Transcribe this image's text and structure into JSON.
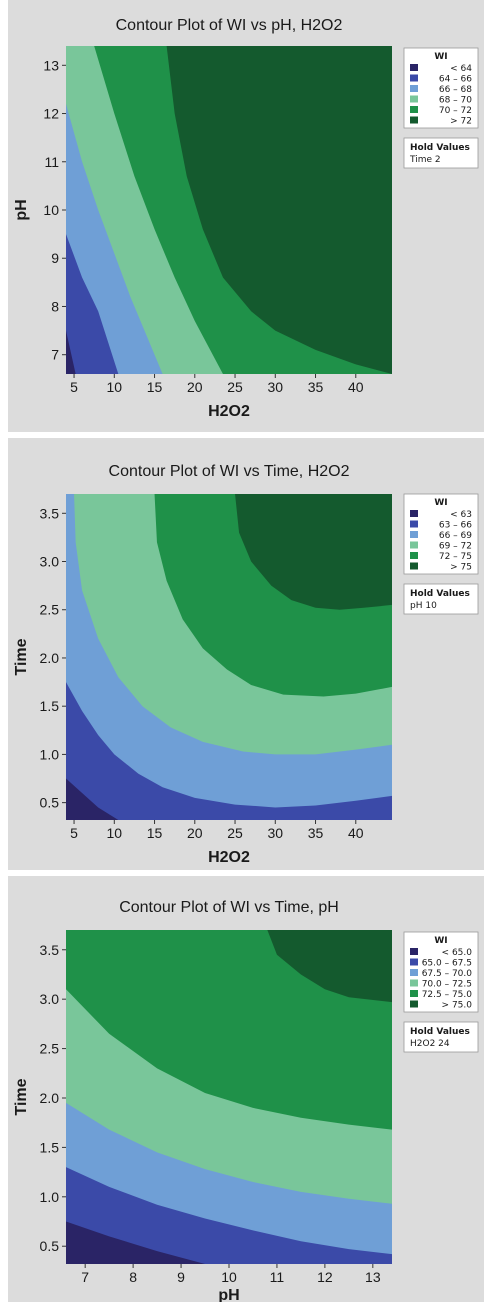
{
  "chart_data": [
    {
      "type": "contour",
      "title": "Contour Plot of WI vs pH, H2O2",
      "xlabel": "H2O2",
      "ylabel": "pH",
      "xlim": [
        4,
        44.5
      ],
      "ylim": [
        6.6,
        13.4
      ],
      "xticks": [
        "5",
        "10",
        "15",
        "20",
        "25",
        "30",
        "35",
        "40"
      ],
      "yticks": [
        "7",
        "8",
        "9",
        "10",
        "11",
        "12",
        "13"
      ],
      "legend": {
        "title": "WI",
        "entries": [
          {
            "op": "<",
            "lo": "",
            "hi": "64",
            "color": "#2a2466"
          },
          {
            "op": "–",
            "lo": "64",
            "hi": "66",
            "color": "#3b4aa8"
          },
          {
            "op": "–",
            "lo": "66",
            "hi": "68",
            "color": "#6f9fd6"
          },
          {
            "op": "–",
            "lo": "68",
            "hi": "70",
            "color": "#79c69a"
          },
          {
            "op": "–",
            "lo": "70",
            "hi": "72",
            "color": "#1f9149"
          },
          {
            "op": ">",
            "lo": "",
            "hi": "72",
            "color": "#145a2e"
          }
        ]
      },
      "hold": {
        "header": "Hold Values",
        "lines": [
          "Time  2"
        ]
      },
      "contours": [
        {
          "level": 64,
          "points": [
            [
              4.0,
              7.5
            ],
            [
              5.2,
              6.6
            ]
          ]
        },
        {
          "level": 66,
          "points": [
            [
              4.0,
              9.5
            ],
            [
              6.0,
              8.6
            ],
            [
              8.0,
              7.9
            ],
            [
              10.5,
              6.6
            ]
          ]
        },
        {
          "level": 68,
          "points": [
            [
              4.0,
              12.2
            ],
            [
              6.0,
              11.0
            ],
            [
              8.0,
              10.0
            ],
            [
              10.0,
              9.1
            ],
            [
              12.0,
              8.2
            ],
            [
              14.0,
              7.4
            ],
            [
              16.0,
              6.6
            ]
          ]
        },
        {
          "level": 70,
          "points": [
            [
              7.5,
              13.4
            ],
            [
              10.0,
              12.0
            ],
            [
              12.5,
              10.7
            ],
            [
              15.0,
              9.6
            ],
            [
              17.5,
              8.6
            ],
            [
              20.0,
              7.7
            ],
            [
              23.5,
              6.6
            ]
          ]
        },
        {
          "level": 72,
          "points": [
            [
              16.5,
              13.4
            ],
            [
              17.5,
              12.0
            ],
            [
              19.0,
              10.7
            ],
            [
              21.0,
              9.6
            ],
            [
              23.5,
              8.6
            ],
            [
              27.0,
              7.9
            ],
            [
              30.0,
              7.5
            ],
            [
              35.0,
              7.1
            ],
            [
              40.0,
              6.8
            ],
            [
              44.5,
              6.6
            ]
          ]
        }
      ]
    },
    {
      "type": "contour",
      "title": "Contour Plot of WI vs Time, H2O2",
      "xlabel": "H2O2",
      "ylabel": "Time",
      "xlim": [
        4,
        44.5
      ],
      "ylim": [
        0.32,
        3.7
      ],
      "xticks": [
        "5",
        "10",
        "15",
        "20",
        "25",
        "30",
        "35",
        "40"
      ],
      "yticks": [
        "0.5",
        "1.0",
        "1.5",
        "2.0",
        "2.5",
        "3.0",
        "3.5"
      ],
      "legend": {
        "title": "WI",
        "entries": [
          {
            "op": "<",
            "lo": "",
            "hi": "63",
            "color": "#2a2466"
          },
          {
            "op": "–",
            "lo": "63",
            "hi": "66",
            "color": "#3b4aa8"
          },
          {
            "op": "–",
            "lo": "66",
            "hi": "69",
            "color": "#6f9fd6"
          },
          {
            "op": "–",
            "lo": "69",
            "hi": "72",
            "color": "#79c69a"
          },
          {
            "op": "–",
            "lo": "72",
            "hi": "75",
            "color": "#1f9149"
          },
          {
            "op": ">",
            "lo": "",
            "hi": "75",
            "color": "#145a2e"
          }
        ]
      },
      "hold": {
        "header": "Hold Values",
        "lines": [
          "pH  10"
        ]
      },
      "contours": [
        {
          "level": 63,
          "points": [
            [
              4.0,
              0.75
            ],
            [
              6.0,
              0.6
            ],
            [
              8.0,
              0.45
            ],
            [
              10.5,
              0.32
            ]
          ]
        },
        {
          "level": 66,
          "points": [
            [
              4.0,
              1.75
            ],
            [
              6.0,
              1.45
            ],
            [
              8.0,
              1.2
            ],
            [
              10.0,
              1.0
            ],
            [
              13.0,
              0.8
            ],
            [
              16.0,
              0.66
            ],
            [
              20.0,
              0.55
            ],
            [
              25.0,
              0.48
            ],
            [
              30.0,
              0.45
            ],
            [
              35.0,
              0.47
            ],
            [
              40.0,
              0.52
            ],
            [
              44.5,
              0.57
            ]
          ]
        },
        {
          "level": 69,
          "points": [
            [
              5.0,
              3.7
            ],
            [
              5.2,
              3.2
            ],
            [
              6.0,
              2.7
            ],
            [
              8.0,
              2.2
            ],
            [
              10.5,
              1.8
            ],
            [
              13.5,
              1.5
            ],
            [
              17.0,
              1.28
            ],
            [
              21.0,
              1.13
            ],
            [
              26.0,
              1.03
            ],
            [
              30.0,
              1.0
            ],
            [
              35.0,
              1.0
            ],
            [
              40.0,
              1.05
            ],
            [
              44.5,
              1.1
            ]
          ]
        },
        {
          "level": 72,
          "points": [
            [
              15.0,
              3.7
            ],
            [
              15.3,
              3.2
            ],
            [
              16.5,
              2.8
            ],
            [
              18.5,
              2.4
            ],
            [
              21.0,
              2.1
            ],
            [
              24.0,
              1.88
            ],
            [
              27.0,
              1.72
            ],
            [
              31.0,
              1.62
            ],
            [
              36.0,
              1.6
            ],
            [
              40.0,
              1.63
            ],
            [
              44.5,
              1.7
            ]
          ]
        },
        {
          "level": 75,
          "points": [
            [
              25.0,
              3.7
            ],
            [
              25.5,
              3.3
            ],
            [
              27.0,
              3.0
            ],
            [
              29.5,
              2.75
            ],
            [
              32.0,
              2.6
            ],
            [
              35.0,
              2.52
            ],
            [
              38.0,
              2.5
            ],
            [
              41.0,
              2.52
            ],
            [
              44.5,
              2.55
            ]
          ]
        }
      ]
    },
    {
      "type": "contour",
      "title": "Contour Plot of WI vs Time, pH",
      "xlabel": "pH",
      "ylabel": "Time",
      "xlim": [
        6.6,
        13.4
      ],
      "ylim": [
        0.32,
        3.7
      ],
      "xticks": [
        "7",
        "8",
        "9",
        "10",
        "11",
        "12",
        "13"
      ],
      "yticks": [
        "0.5",
        "1.0",
        "1.5",
        "2.0",
        "2.5",
        "3.0",
        "3.5"
      ],
      "legend": {
        "title": "WI",
        "entries": [
          {
            "op": "<",
            "lo": "",
            "hi": "65.0",
            "color": "#2a2466"
          },
          {
            "op": "–",
            "lo": "65.0",
            "hi": "67.5",
            "color": "#3b4aa8"
          },
          {
            "op": "–",
            "lo": "67.5",
            "hi": "70.0",
            "color": "#6f9fd6"
          },
          {
            "op": "–",
            "lo": "70.0",
            "hi": "72.5",
            "color": "#79c69a"
          },
          {
            "op": "–",
            "lo": "72.5",
            "hi": "75.0",
            "color": "#1f9149"
          },
          {
            "op": ">",
            "lo": "",
            "hi": "75.0",
            "color": "#145a2e"
          }
        ]
      },
      "hold": {
        "header": "Hold Values",
        "lines": [
          "H2O2  24"
        ]
      },
      "contours": [
        {
          "level": 65.0,
          "points": [
            [
              6.6,
              0.75
            ],
            [
              7.5,
              0.6
            ],
            [
              8.5,
              0.45
            ],
            [
              9.5,
              0.32
            ]
          ]
        },
        {
          "level": 67.5,
          "points": [
            [
              6.6,
              1.3
            ],
            [
              7.5,
              1.1
            ],
            [
              8.5,
              0.92
            ],
            [
              9.5,
              0.78
            ],
            [
              10.5,
              0.66
            ],
            [
              11.5,
              0.55
            ],
            [
              12.5,
              0.47
            ],
            [
              13.4,
              0.42
            ]
          ]
        },
        {
          "level": 70.0,
          "points": [
            [
              6.6,
              1.95
            ],
            [
              7.5,
              1.68
            ],
            [
              8.5,
              1.45
            ],
            [
              9.5,
              1.28
            ],
            [
              10.5,
              1.15
            ],
            [
              11.5,
              1.05
            ],
            [
              12.5,
              0.98
            ],
            [
              13.4,
              0.93
            ]
          ]
        },
        {
          "level": 72.5,
          "points": [
            [
              6.6,
              3.1
            ],
            [
              7.5,
              2.65
            ],
            [
              8.5,
              2.3
            ],
            [
              9.5,
              2.05
            ],
            [
              10.5,
              1.9
            ],
            [
              11.5,
              1.8
            ],
            [
              12.5,
              1.73
            ],
            [
              13.4,
              1.68
            ]
          ]
        },
        {
          "level": 75.0,
          "points": [
            [
              10.8,
              3.7
            ],
            [
              11.0,
              3.45
            ],
            [
              11.5,
              3.25
            ],
            [
              12.0,
              3.1
            ],
            [
              12.5,
              3.02
            ],
            [
              13.4,
              2.97
            ]
          ]
        }
      ]
    }
  ]
}
